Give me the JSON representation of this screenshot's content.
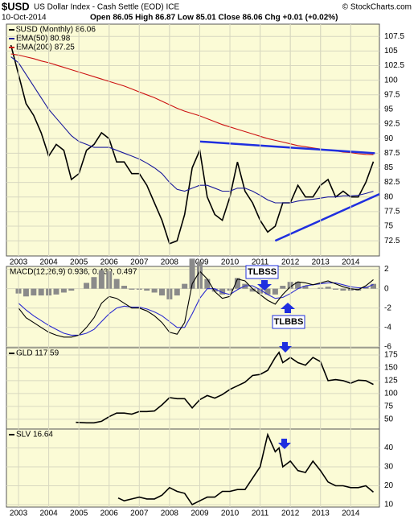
{
  "header": {
    "symbol": "$USD",
    "name": "US Dollar Index - Cash Settle (EOD) ICE",
    "date": "10-Oct-2014",
    "quote": "Open 86.05  High 86.87  Low 85.01  Close 86.06  Chg +0.01 (+0.02%)",
    "credit": "© StockCharts.com"
  },
  "annotations": [
    "TLBSS",
    "TLBBS"
  ],
  "chart_data": [
    {
      "type": "line",
      "xlim": [
        2002.6,
        2014.95
      ],
      "ylim": [
        69.9,
        109.6
      ],
      "yticks": [
        72.5,
        75.0,
        77.5,
        80.0,
        82.5,
        85.0,
        87.5,
        90.0,
        92.5,
        95.0,
        97.5,
        100.0,
        102.5,
        105.0,
        107.5
      ],
      "xticks": [
        2003,
        2004,
        2005,
        2006,
        2007,
        2008,
        2009,
        2010,
        2011,
        2012,
        2013,
        2014
      ],
      "grid": true,
      "x": [
        2002.75,
        2003.0,
        2003.25,
        2003.5,
        2003.75,
        2004.0,
        2004.25,
        2004.5,
        2004.75,
        2005.0,
        2005.25,
        2005.5,
        2005.75,
        2006.0,
        2006.25,
        2006.5,
        2006.75,
        2007.0,
        2007.25,
        2007.5,
        2007.75,
        2008.0,
        2008.25,
        2008.5,
        2008.75,
        2009.0,
        2009.25,
        2009.5,
        2009.75,
        2010.0,
        2010.25,
        2010.5,
        2010.75,
        2011.0,
        2011.25,
        2011.5,
        2011.75,
        2012.0,
        2012.25,
        2012.5,
        2012.75,
        2013.0,
        2013.25,
        2013.5,
        2013.75,
        2014.0,
        2014.25,
        2014.5,
        2014.75
      ],
      "series": [
        {
          "name": "$USD (Monthly) 86.06",
          "color": "#000000",
          "values": [
            106,
            101,
            96,
            94,
            91,
            87,
            89,
            88,
            83,
            84,
            88,
            89,
            91,
            90,
            86,
            86,
            84,
            84,
            82,
            79,
            76,
            72,
            72.5,
            77,
            85,
            88,
            80,
            77,
            76,
            80,
            86,
            81,
            79,
            76,
            74,
            75,
            79,
            79,
            82,
            80,
            80,
            82,
            83,
            80,
            81,
            80,
            80,
            82.5,
            86.06
          ]
        },
        {
          "name": "EMA(50) 80.98",
          "color": "#1a1a9c",
          "values": [
            104,
            103,
            101,
            99,
            97,
            95,
            93.5,
            92,
            90.5,
            89.5,
            89,
            88.5,
            88.5,
            88.5,
            88,
            87.5,
            87,
            86.5,
            85.8,
            85,
            84,
            82.5,
            81.3,
            81,
            81.5,
            82,
            82,
            81.5,
            81,
            81,
            81.5,
            81.5,
            81,
            80.3,
            79.5,
            79,
            79,
            79,
            79.3,
            79.5,
            79.6,
            79.8,
            80,
            80,
            80.2,
            80.2,
            80.3,
            80.6,
            80.98
          ]
        },
        {
          "name": "EMA(200) 87.25",
          "color": "#cc1111",
          "values": [
            104.5,
            104.3,
            104,
            103.7,
            103.3,
            103,
            102.6,
            102.2,
            101.8,
            101.4,
            101,
            100.6,
            100.2,
            99.8,
            99.4,
            99,
            98.5,
            98,
            97.5,
            97,
            96.4,
            95.8,
            95.2,
            94.7,
            94.3,
            93.9,
            93.4,
            92.9,
            92.4,
            92,
            91.6,
            91.2,
            90.8,
            90.4,
            90,
            89.7,
            89.4,
            89.1,
            88.8,
            88.6,
            88.4,
            88.2,
            88,
            87.9,
            87.7,
            87.6,
            87.4,
            87.3,
            87.25
          ]
        }
      ],
      "trendlines": [
        {
          "color": "#1f2fdf",
          "x": [
            2009.0,
            2014.8
          ],
          "y": [
            89.5,
            87.5
          ]
        },
        {
          "color": "#1f2fdf",
          "x": [
            2011.5,
            2014.95
          ],
          "y": [
            72.5,
            80.5
          ]
        }
      ]
    },
    {
      "type": "line",
      "title": "MACD(12,26,9) 0.936, 0.439, 0.497",
      "xlim": [
        2002.6,
        2014.95
      ],
      "ylim": [
        -6.1,
        2.3
      ],
      "yticks": [
        -6,
        -4,
        -2,
        0,
        2
      ],
      "grid": true,
      "x": [
        2003.0,
        2003.25,
        2003.5,
        2003.75,
        2004.0,
        2004.25,
        2004.5,
        2004.75,
        2005.0,
        2005.25,
        2005.5,
        2005.75,
        2006.0,
        2006.25,
        2006.5,
        2006.75,
        2007.0,
        2007.25,
        2007.5,
        2007.75,
        2008.0,
        2008.25,
        2008.5,
        2008.75,
        2009.0,
        2009.25,
        2009.5,
        2009.75,
        2010.0,
        2010.25,
        2010.5,
        2010.75,
        2011.0,
        2011.25,
        2011.5,
        2011.75,
        2012.0,
        2012.25,
        2012.5,
        2012.75,
        2013.0,
        2013.25,
        2013.5,
        2013.75,
        2014.0,
        2014.25,
        2014.5,
        2014.75
      ],
      "series": [
        {
          "type": "bar",
          "color": "#8a8a8a",
          "values": [
            -0.5,
            -0.8,
            -0.7,
            -0.7,
            -0.7,
            -0.6,
            -0.4,
            -0.2,
            0,
            0.6,
            1.2,
            1.9,
            1.8,
            1,
            0.3,
            -0.1,
            -0.1,
            -0.2,
            -0.4,
            -0.7,
            -1.1,
            -0.7,
            0.5,
            3.1,
            2.8,
            1,
            -0.3,
            -0.6,
            -0.2,
            1.1,
            0.5,
            -0.3,
            -0.5,
            -0.6,
            -0.6,
            0.3,
            0.7,
            0.7,
            0.3,
            0,
            0.1,
            0.2,
            -0.1,
            -0.2,
            -0.2,
            -0.2,
            0.2,
            0.497
          ]
        },
        {
          "type": "line",
          "color": "#2a2ad0",
          "values": [
            -1.5,
            -2.2,
            -2.8,
            -3.3,
            -3.8,
            -4.2,
            -4.6,
            -4.8,
            -4.8,
            -4.6,
            -4.2,
            -3.4,
            -2.6,
            -2,
            -1.8,
            -1.9,
            -1.9,
            -2.1,
            -2.4,
            -2.8,
            -3.4,
            -4,
            -4,
            -2.6,
            -1,
            0,
            0,
            -0.4,
            -0.6,
            -0.1,
            0.3,
            0.3,
            -0.1,
            -0.6,
            -1,
            -0.9,
            -0.5,
            0,
            0.3,
            0.4,
            0.5,
            0.6,
            0.6,
            0.4,
            0.2,
            0.1,
            0.1,
            0.439
          ]
        },
        {
          "type": "line",
          "color": "#000000",
          "values": [
            -2,
            -3,
            -3.5,
            -4,
            -4.5,
            -4.8,
            -5,
            -5,
            -4.8,
            -4,
            -3,
            -1.5,
            -0.8,
            -1,
            -1.5,
            -2,
            -2,
            -2.3,
            -2.8,
            -3.5,
            -4.5,
            -4.7,
            -3.5,
            0.5,
            1.8,
            1,
            -0.3,
            -1,
            -0.8,
            1,
            0.8,
            0,
            -0.6,
            -1.2,
            -1.6,
            -0.6,
            0.2,
            0.7,
            0.6,
            0.4,
            0.6,
            0.8,
            0.5,
            0.2,
            0,
            -0.1,
            0.3,
            0.936
          ]
        }
      ]
    },
    {
      "type": "line",
      "xlim": [
        2002.6,
        2014.95
      ],
      "ylim": [
        31,
        189
      ],
      "yticks": [
        50,
        75,
        100,
        125,
        150,
        175
      ],
      "grid": true,
      "x": [
        2004.9,
        2005.25,
        2005.5,
        2005.75,
        2006.0,
        2006.25,
        2006.5,
        2006.75,
        2007.0,
        2007.25,
        2007.5,
        2007.75,
        2008.0,
        2008.25,
        2008.5,
        2008.75,
        2009.0,
        2009.25,
        2009.5,
        2009.75,
        2010.0,
        2010.25,
        2010.5,
        2010.75,
        2011.0,
        2011.25,
        2011.5,
        2011.625,
        2011.75,
        2012.0,
        2012.25,
        2012.5,
        2012.75,
        2013.0,
        2013.25,
        2013.5,
        2013.75,
        2014.0,
        2014.25,
        2014.5,
        2014.75
      ],
      "series": [
        {
          "name": "GLD 117.59",
          "color": "#000000",
          "values": [
            44,
            43,
            43,
            46,
            55,
            62,
            62,
            60,
            65,
            65,
            66,
            78,
            92,
            90,
            90,
            72,
            88,
            96,
            91,
            98,
            108,
            115,
            122,
            135,
            137,
            145,
            170,
            180,
            160,
            170,
            160,
            155,
            170,
            162,
            125,
            127,
            125,
            120,
            126,
            125,
            117.59
          ]
        }
      ]
    },
    {
      "type": "line",
      "xlim": [
        2002.6,
        2014.95
      ],
      "ylim": [
        8.7,
        50
      ],
      "yticks": [
        10,
        20,
        30,
        40
      ],
      "grid": true,
      "xticks": [
        2003,
        2004,
        2005,
        2006,
        2007,
        2008,
        2009,
        2010,
        2011,
        2012,
        2013,
        2014
      ],
      "x": [
        2006.3,
        2006.5,
        2006.75,
        2007.0,
        2007.25,
        2007.5,
        2007.75,
        2008.0,
        2008.25,
        2008.5,
        2008.75,
        2009.0,
        2009.25,
        2009.5,
        2009.75,
        2010.0,
        2010.25,
        2010.5,
        2010.75,
        2011.0,
        2011.25,
        2011.5,
        2011.625,
        2011.75,
        2012.0,
        2012.25,
        2012.5,
        2012.75,
        2013.0,
        2013.25,
        2013.5,
        2013.75,
        2014.0,
        2014.25,
        2014.5,
        2014.75
      ],
      "series": [
        {
          "name": "SLV 16.64",
          "color": "#000000",
          "values": [
            13.5,
            12,
            13,
            14,
            13,
            13,
            15,
            19,
            17,
            16,
            10,
            12,
            14,
            14,
            17,
            17,
            18,
            18,
            24,
            30,
            47,
            38,
            40,
            30,
            33,
            28,
            27,
            33,
            28,
            22,
            20,
            20,
            19,
            19,
            20,
            16.64
          ]
        }
      ]
    }
  ]
}
